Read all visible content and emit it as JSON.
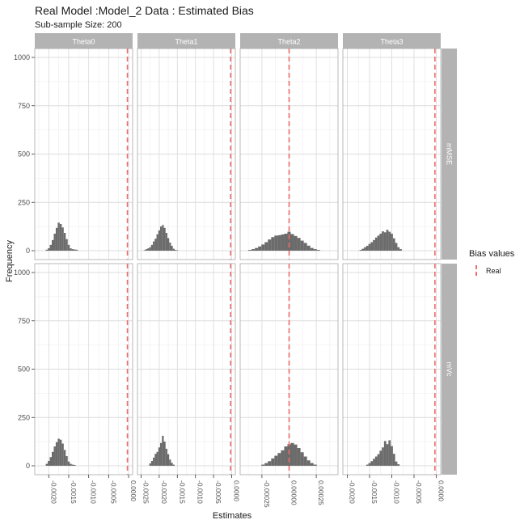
{
  "chart_data": {
    "type": "bar",
    "title": "Real Model :Model_2 Data : Estimated Bias",
    "subtitle": "Sub-sample Size: 200",
    "xlabel": "Estimates",
    "ylabel": "Frequency",
    "legend": {
      "title": "Bias values",
      "entries": [
        "Real"
      ],
      "position": "right",
      "line_color": "#ee6b6b"
    },
    "bar_color": "#6b6b6b",
    "strip_color": "#b3b3b3",
    "grid": true,
    "facet_columns": [
      "Theta0",
      "Theta1",
      "Theta2",
      "Theta3"
    ],
    "facet_rows": [
      "mMSE",
      "mVc"
    ],
    "ylim": [
      0,
      1000
    ],
    "y_ticks": [
      0,
      250,
      500,
      750,
      1000
    ],
    "panels": [
      {
        "row": "mMSE",
        "col": "Theta0",
        "xlim": [
          -0.00235,
          0.0001
        ],
        "x_ticks": [
          -0.002,
          -0.0015,
          -0.001,
          -0.0005,
          0
        ],
        "x_tick_labels": [
          "-0.0020",
          "-0.0015",
          "-0.0010",
          "-0.0005",
          "0.0000"
        ],
        "real_value": -3e-05,
        "bins": [
          [
            -0.00205,
            5
          ],
          [
            -0.002,
            12
          ],
          [
            -0.00195,
            30
          ],
          [
            -0.0019,
            55
          ],
          [
            -0.00185,
            88
          ],
          [
            -0.0018,
            118
          ],
          [
            -0.00175,
            145
          ],
          [
            -0.0017,
            138
          ],
          [
            -0.00165,
            120
          ],
          [
            -0.0016,
            92
          ],
          [
            -0.00155,
            60
          ],
          [
            -0.0015,
            30
          ],
          [
            -0.00145,
            12
          ],
          [
            -0.0014,
            8
          ],
          [
            -0.00135,
            6
          ],
          [
            -0.0013,
            5
          ]
        ]
      },
      {
        "row": "mMSE",
        "col": "Theta1",
        "xlim": [
          -0.0026,
          0.0001
        ],
        "x_ticks": [
          -0.0025,
          -0.002,
          -0.0015,
          -0.001,
          -0.0005,
          0
        ],
        "x_tick_labels": [
          "-0.0025",
          "-0.0020",
          "-0.0015",
          "-0.0010",
          "-0.0005",
          "0.0000"
        ],
        "real_value": -3e-05,
        "bins": [
          [
            -0.0024,
            3
          ],
          [
            -0.00235,
            8
          ],
          [
            -0.0023,
            12
          ],
          [
            -0.00225,
            18
          ],
          [
            -0.0022,
            30
          ],
          [
            -0.00215,
            48
          ],
          [
            -0.0021,
            62
          ],
          [
            -0.00205,
            85
          ],
          [
            -0.002,
            105
          ],
          [
            -0.00195,
            125
          ],
          [
            -0.0019,
            133
          ],
          [
            -0.00185,
            118
          ],
          [
            -0.0018,
            92
          ],
          [
            -0.00175,
            65
          ],
          [
            -0.0017,
            42
          ],
          [
            -0.00165,
            25
          ],
          [
            -0.0016,
            10
          ],
          [
            -0.00155,
            4
          ],
          [
            -0.0015,
            2
          ]
        ]
      },
      {
        "row": "mMSE",
        "col": "Theta2",
        "xlim": [
          -0.00045,
          0.00045
        ],
        "x_ticks": [
          -0.00025,
          0,
          0.00025
        ],
        "x_tick_labels": [
          "-0.00025",
          "0.00000",
          "0.00025"
        ],
        "real_value": 0,
        "bins": [
          [
            -0.00036,
            4
          ],
          [
            -0.00033,
            8
          ],
          [
            -0.0003,
            14
          ],
          [
            -0.00027,
            22
          ],
          [
            -0.00024,
            32
          ],
          [
            -0.00021,
            44
          ],
          [
            -0.00018,
            58
          ],
          [
            -0.00015,
            70
          ],
          [
            -0.00012,
            78
          ],
          [
            -9e-05,
            80
          ],
          [
            -6e-05,
            84
          ],
          [
            -3e-05,
            88
          ],
          [
            0,
            98
          ],
          [
            3e-05,
            86
          ],
          [
            6e-05,
            76
          ],
          [
            9e-05,
            66
          ],
          [
            0.00012,
            52
          ],
          [
            0.00015,
            40
          ],
          [
            0.00018,
            26
          ],
          [
            0.00021,
            14
          ],
          [
            0.00024,
            8
          ],
          [
            0.00027,
            4
          ]
        ]
      },
      {
        "row": "mMSE",
        "col": "Theta3",
        "xlim": [
          -0.0021,
          0.0001
        ],
        "x_ticks": [
          -0.002,
          -0.0015,
          -0.001,
          -0.0005,
          0
        ],
        "x_tick_labels": [
          "-0.0020",
          "-0.0015",
          "-0.0010",
          "-0.0005",
          "0.0000"
        ],
        "real_value": -3e-05,
        "bins": [
          [
            -0.0017,
            4
          ],
          [
            -0.00165,
            10
          ],
          [
            -0.0016,
            18
          ],
          [
            -0.00155,
            25
          ],
          [
            -0.0015,
            35
          ],
          [
            -0.00145,
            44
          ],
          [
            -0.0014,
            55
          ],
          [
            -0.00135,
            68
          ],
          [
            -0.0013,
            78
          ],
          [
            -0.00125,
            88
          ],
          [
            -0.0012,
            100
          ],
          [
            -0.00115,
            95
          ],
          [
            -0.0011,
            108
          ],
          [
            -0.00105,
            98
          ],
          [
            -0.001,
            88
          ],
          [
            -0.00095,
            64
          ],
          [
            -0.0009,
            40
          ],
          [
            -0.00085,
            18
          ],
          [
            -0.0008,
            8
          ]
        ]
      },
      {
        "row": "mVc",
        "col": "Theta0",
        "xlim": [
          -0.00235,
          0.0001
        ],
        "x_ticks": [
          -0.002,
          -0.0015,
          -0.001,
          -0.0005,
          0
        ],
        "x_tick_labels": [
          "-0.0020",
          "-0.0015",
          "-0.0010",
          "-0.0005",
          "0.0000"
        ],
        "real_value": -3e-05,
        "bins": [
          [
            -0.00205,
            10
          ],
          [
            -0.002,
            25
          ],
          [
            -0.00195,
            45
          ],
          [
            -0.0019,
            72
          ],
          [
            -0.00185,
            100
          ],
          [
            -0.0018,
            122
          ],
          [
            -0.00175,
            140
          ],
          [
            -0.0017,
            135
          ],
          [
            -0.00165,
            115
          ],
          [
            -0.0016,
            82
          ],
          [
            -0.00155,
            50
          ],
          [
            -0.0015,
            22
          ],
          [
            -0.00145,
            10
          ],
          [
            -0.0014,
            6
          ],
          [
            -0.00135,
            4
          ]
        ]
      },
      {
        "row": "mVc",
        "col": "Theta1",
        "xlim": [
          -0.0026,
          0.0001
        ],
        "x_ticks": [
          -0.0025,
          -0.002,
          -0.0015,
          -0.001,
          -0.0005,
          0
        ],
        "x_tick_labels": [
          "-0.0025",
          "-0.0020",
          "-0.0015",
          "-0.0010",
          "-0.0005",
          "0.0000"
        ],
        "real_value": -3e-05,
        "bins": [
          [
            -0.00225,
            12
          ],
          [
            -0.0022,
            25
          ],
          [
            -0.00215,
            42
          ],
          [
            -0.0021,
            62
          ],
          [
            -0.00205,
            72
          ],
          [
            -0.002,
            95
          ],
          [
            -0.00195,
            118
          ],
          [
            -0.0019,
            155
          ],
          [
            -0.00185,
            125
          ],
          [
            -0.0018,
            88
          ],
          [
            -0.00175,
            60
          ],
          [
            -0.0017,
            32
          ],
          [
            -0.00165,
            15
          ],
          [
            -0.0016,
            6
          ]
        ]
      },
      {
        "row": "mVc",
        "col": "Theta2",
        "xlim": [
          -0.00045,
          0.00045
        ],
        "x_ticks": [
          -0.00025,
          0,
          0.00025
        ],
        "x_tick_labels": [
          "-0.00025",
          "0.00000",
          "0.00025"
        ],
        "real_value": 0,
        "bins": [
          [
            -0.00024,
            6
          ],
          [
            -0.00021,
            14
          ],
          [
            -0.00018,
            24
          ],
          [
            -0.00015,
            38
          ],
          [
            -0.00012,
            52
          ],
          [
            -9e-05,
            66
          ],
          [
            -6e-05,
            80
          ],
          [
            -3e-05,
            100
          ],
          [
            0,
            112
          ],
          [
            3e-05,
            118
          ],
          [
            6e-05,
            110
          ],
          [
            9e-05,
            92
          ],
          [
            0.00012,
            70
          ],
          [
            0.00015,
            48
          ],
          [
            0.00018,
            28
          ],
          [
            0.00021,
            14
          ],
          [
            0.00024,
            6
          ]
        ]
      },
      {
        "row": "mVc",
        "col": "Theta3",
        "xlim": [
          -0.0021,
          0.0001
        ],
        "x_ticks": [
          -0.002,
          -0.0015,
          -0.001,
          -0.0005,
          0
        ],
        "x_tick_labels": [
          "-0.0020",
          "-0.0015",
          "-0.0010",
          "-0.0005",
          "0.0000"
        ],
        "real_value": -3e-05,
        "bins": [
          [
            -0.00155,
            6
          ],
          [
            -0.0015,
            14
          ],
          [
            -0.00145,
            24
          ],
          [
            -0.0014,
            36
          ],
          [
            -0.00135,
            48
          ],
          [
            -0.0013,
            60
          ],
          [
            -0.00125,
            78
          ],
          [
            -0.0012,
            95
          ],
          [
            -0.00115,
            128
          ],
          [
            -0.0011,
            112
          ],
          [
            -0.00105,
            132
          ],
          [
            -0.001,
            102
          ],
          [
            -0.00095,
            62
          ],
          [
            -0.0009,
            22
          ],
          [
            -0.00085,
            8
          ]
        ]
      }
    ]
  }
}
